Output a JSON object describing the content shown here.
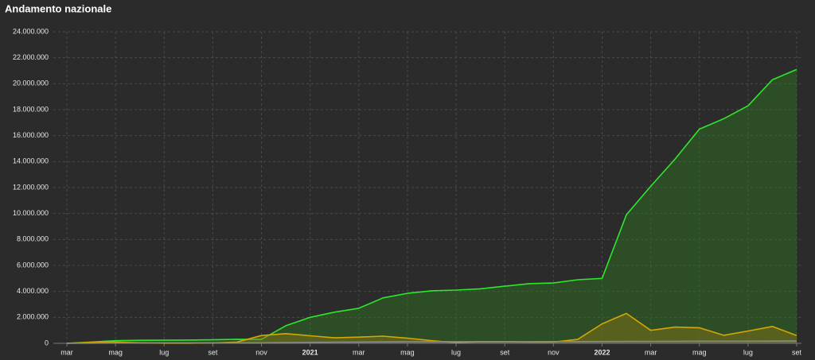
{
  "chart_data": {
    "type": "area",
    "title": "Andamento nazionale",
    "categories": [
      "mar",
      null,
      "mag",
      null,
      "lug",
      null,
      "set",
      null,
      "nov",
      null,
      "2021",
      null,
      "mar",
      null,
      "mag",
      null,
      "lug",
      null,
      "set",
      null,
      "nov",
      null,
      "2022",
      null,
      "mar",
      null,
      "mag",
      null,
      "lug",
      null,
      "set"
    ],
    "series": [
      {
        "color": "#2ee62e",
        "fill": "rgba(46,120,30,0.45)",
        "values": [
          0,
          0.1,
          0.2,
          0.23,
          0.24,
          0.25,
          0.27,
          0.31,
          0.3,
          1.35,
          2.0,
          2.4,
          2.7,
          3.5,
          3.85,
          4.05,
          4.1,
          4.2,
          4.4,
          4.6,
          4.65,
          4.9,
          5.0,
          9.9,
          12.1,
          14.2,
          16.5,
          17.3,
          18.3,
          20.3,
          21.1
        ]
      },
      {
        "color": "#d4a800",
        "fill": "rgba(140,120,20,0.45)",
        "values": [
          0,
          0.08,
          0.1,
          0.04,
          0.015,
          0.013,
          0.03,
          0.1,
          0.6,
          0.75,
          0.58,
          0.42,
          0.48,
          0.55,
          0.4,
          0.2,
          0.045,
          0.13,
          0.13,
          0.09,
          0.1,
          0.3,
          1.5,
          2.3,
          1.0,
          1.25,
          1.2,
          0.62,
          0.95,
          1.3,
          0.6
        ]
      },
      {
        "color": "#8a8a8a",
        "fill": "rgba(120,120,120,0.3)",
        "values": [
          0,
          0.012,
          0.028,
          0.033,
          0.035,
          0.035,
          0.036,
          0.036,
          0.039,
          0.055,
          0.075,
          0.088,
          0.097,
          0.11,
          0.12,
          0.127,
          0.128,
          0.128,
          0.129,
          0.131,
          0.133,
          0.136,
          0.138,
          0.146,
          0.154,
          0.159,
          0.164,
          0.167,
          0.168,
          0.172,
          0.176
        ]
      }
    ],
    "ylim": [
      0,
      24
    ],
    "yticks": [
      0,
      {
        "value": 2,
        "label": "2.000.000"
      },
      {
        "value": 4,
        "label": "4.000.000"
      },
      {
        "value": 6,
        "label": "6.000.000"
      },
      {
        "value": 8,
        "label": "8.000.000"
      },
      {
        "value": 10,
        "label": "10.000.000"
      },
      {
        "value": 12,
        "label": "12.000.000"
      },
      {
        "value": 14,
        "label": "14.000.000"
      },
      {
        "value": 16,
        "label": "16.000.000"
      },
      {
        "value": 18,
        "label": "18.000.000"
      },
      {
        "value": 20,
        "label": "20.000.000"
      },
      {
        "value": 22,
        "label": "22.000.000"
      },
      {
        "value": 24,
        "label": "24.000.000"
      }
    ],
    "grid": true
  }
}
